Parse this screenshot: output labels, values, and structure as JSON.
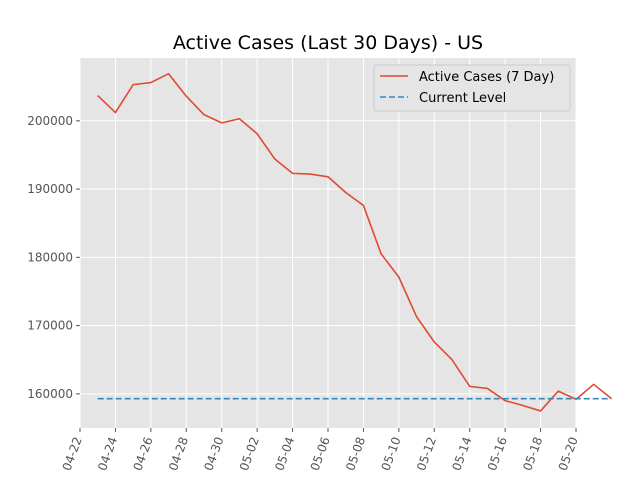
{
  "chart_data": {
    "type": "line",
    "title": "Active Cases (Last 30 Days) - US",
    "xlabel": "",
    "ylabel": "",
    "x_ticks": [
      "04-22",
      "04-24",
      "04-26",
      "04-28",
      "04-30",
      "05-02",
      "05-04",
      "05-06",
      "05-08",
      "05-10",
      "05-12",
      "05-14",
      "05-16",
      "05-18",
      "05-20"
    ],
    "y_ticks": [
      160000,
      170000,
      180000,
      190000,
      200000
    ],
    "y_tick_labels": [
      "160000",
      "170000",
      "180000",
      "190000",
      "200000"
    ],
    "xlim": [
      "2020-04-22",
      "2020-05-20"
    ],
    "ylim": [
      155000,
      209200
    ],
    "grid": true,
    "legend_position": "top-right",
    "style": "ggplot",
    "series": [
      {
        "name": "Active Cases (7 Day)",
        "color": "#E24A33",
        "line_style": "solid",
        "x": [
          "2020-04-23",
          "2020-04-24",
          "2020-04-25",
          "2020-04-26",
          "2020-04-27",
          "2020-04-28",
          "2020-04-29",
          "2020-04-30",
          "2020-05-01",
          "2020-05-02",
          "2020-05-03",
          "2020-05-04",
          "2020-05-05",
          "2020-05-06",
          "2020-05-07",
          "2020-05-08",
          "2020-05-09",
          "2020-05-10",
          "2020-05-11",
          "2020-05-12",
          "2020-05-13",
          "2020-05-14",
          "2020-05-15",
          "2020-05-16",
          "2020-05-17",
          "2020-05-18",
          "2020-05-19",
          "2020-05-20",
          "2020-05-21",
          "2020-05-22"
        ],
        "values": [
          203700,
          201200,
          205300,
          205600,
          206900,
          203600,
          200900,
          199700,
          200300,
          198100,
          194400,
          192300,
          192200,
          191800,
          189500,
          187600,
          180500,
          177100,
          171300,
          167600,
          165000,
          161100,
          160800,
          159000,
          158300,
          157500,
          160400,
          159200,
          161400,
          159300
        ]
      },
      {
        "name": "Current Level",
        "color": "#348ABD",
        "line_style": "dashed",
        "x": [
          "2020-04-23",
          "2020-05-22"
        ],
        "values": [
          159300,
          159300
        ]
      }
    ]
  }
}
